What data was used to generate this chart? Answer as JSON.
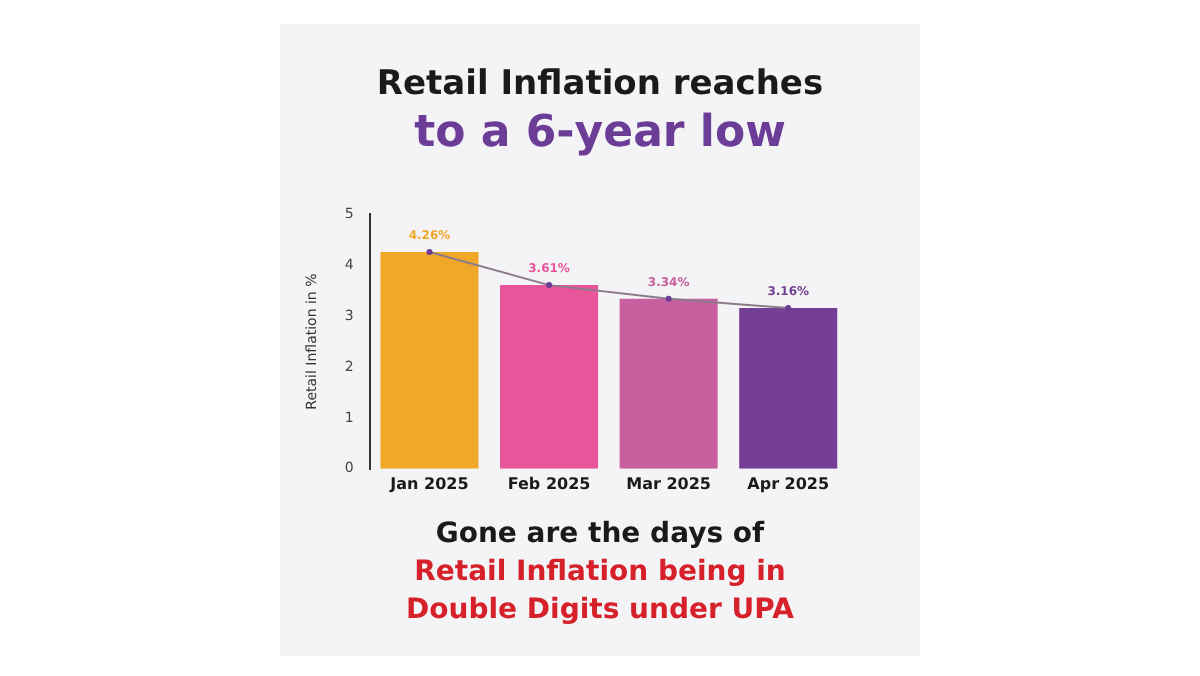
{
  "chart_data": {
    "type": "bar",
    "title": "Retail Inflation reaches",
    "subtitle": "to a 6-year low",
    "ylabel": "Retail Inflation in %",
    "categories": [
      "Jan 2025",
      "Feb 2025",
      "Mar 2025",
      "Apr 2025"
    ],
    "series": [
      {
        "colors": [
          "#f0a828",
          "#e8559a",
          "#c8609f",
          "#733e94"
        ],
        "values": [
          4.26,
          3.61,
          3.34,
          3.16
        ],
        "value_labels": [
          "4.26%",
          "3.61%",
          "3.34%",
          "3.16%"
        ]
      },
      {
        "type": "line",
        "color": "#8a7a8a",
        "values": [
          4.26,
          3.61,
          3.34,
          3.16
        ]
      }
    ],
    "ylim": [
      0,
      5
    ],
    "yticks": [
      0,
      1,
      2,
      3,
      4,
      5
    ],
    "grid": false,
    "legend": false,
    "marker": "circle",
    "annotations": [
      "Gone are the days of",
      "Retail Inflation being in",
      "Double Digits under UPA"
    ]
  }
}
